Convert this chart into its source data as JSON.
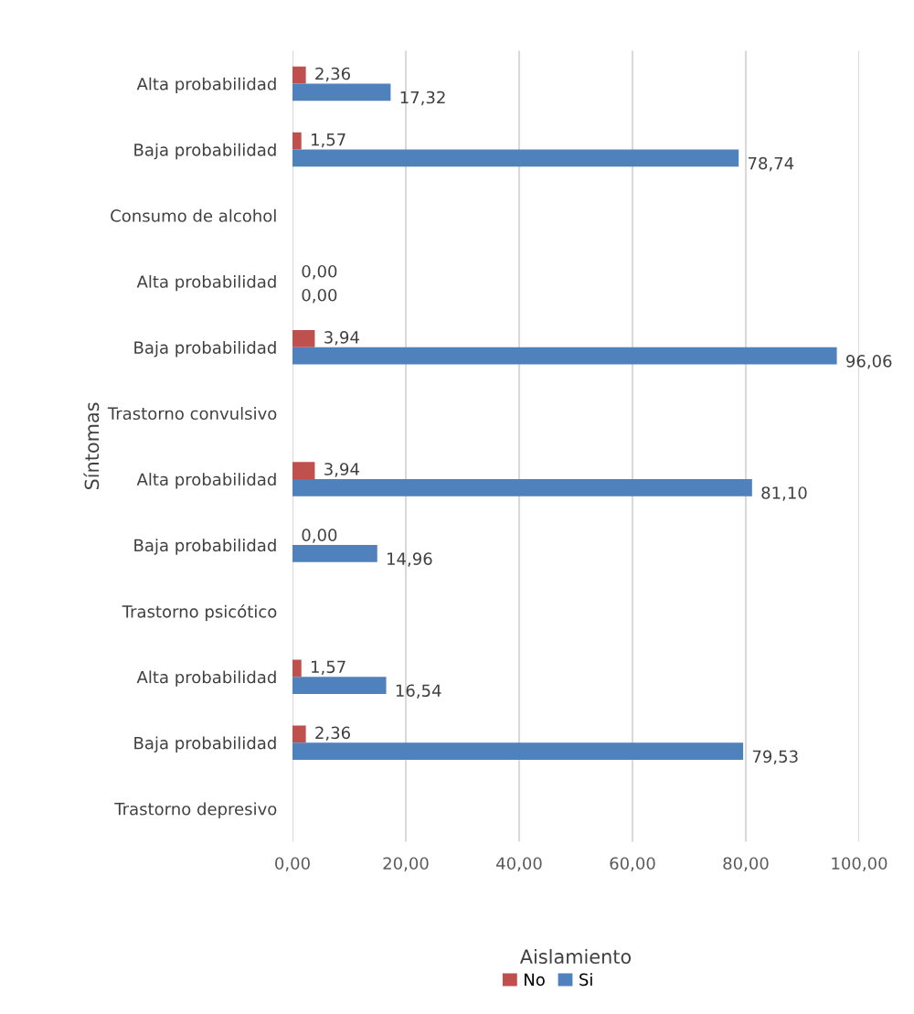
{
  "chart_data": {
    "type": "bar",
    "orientation": "horizontal",
    "xlabel": "Aislamiento",
    "ylabel": "Síntomas",
    "categories": [
      "Alta probabilidad",
      "Baja probabilidad",
      "Consumo de alcohol",
      "Alta probabilidad",
      "Baja probabilidad",
      "Trastorno convulsivo",
      "Alta probabilidad",
      "Baja probabilidad",
      "Trastorno psicótico",
      "Alta probabilidad",
      "Baja probabilidad",
      "Trastorno depresivo"
    ],
    "series": [
      {
        "name": "No",
        "color": "#c0504d",
        "values": [
          2.36,
          1.57,
          null,
          0.0,
          3.94,
          null,
          3.94,
          0.0,
          null,
          1.57,
          2.36,
          null
        ],
        "value_labels": [
          "2,36",
          "1,57",
          null,
          "0,00",
          "3,94",
          null,
          "3,94",
          "0,00",
          null,
          "1,57",
          "2,36",
          null
        ]
      },
      {
        "name": "Si",
        "color": "#4f81bd",
        "values": [
          17.32,
          78.74,
          null,
          0.0,
          96.06,
          null,
          81.1,
          14.96,
          null,
          16.54,
          79.53,
          null
        ],
        "value_labels": [
          "17,32",
          "78,74",
          null,
          "0,00",
          "96,06",
          null,
          "81,10",
          "14,96",
          null,
          "16,54",
          "79,53",
          null
        ]
      }
    ],
    "xlim": [
      0,
      100
    ],
    "xticks": [
      {
        "value": 0,
        "label": "0,00"
      },
      {
        "value": 20,
        "label": "20,00"
      },
      {
        "value": 40,
        "label": "40,00"
      },
      {
        "value": 60,
        "label": "60,00"
      },
      {
        "value": 80,
        "label": "80,00"
      },
      {
        "value": 100,
        "label": "100,00"
      }
    ],
    "grid": "x",
    "legend": "bottom"
  }
}
